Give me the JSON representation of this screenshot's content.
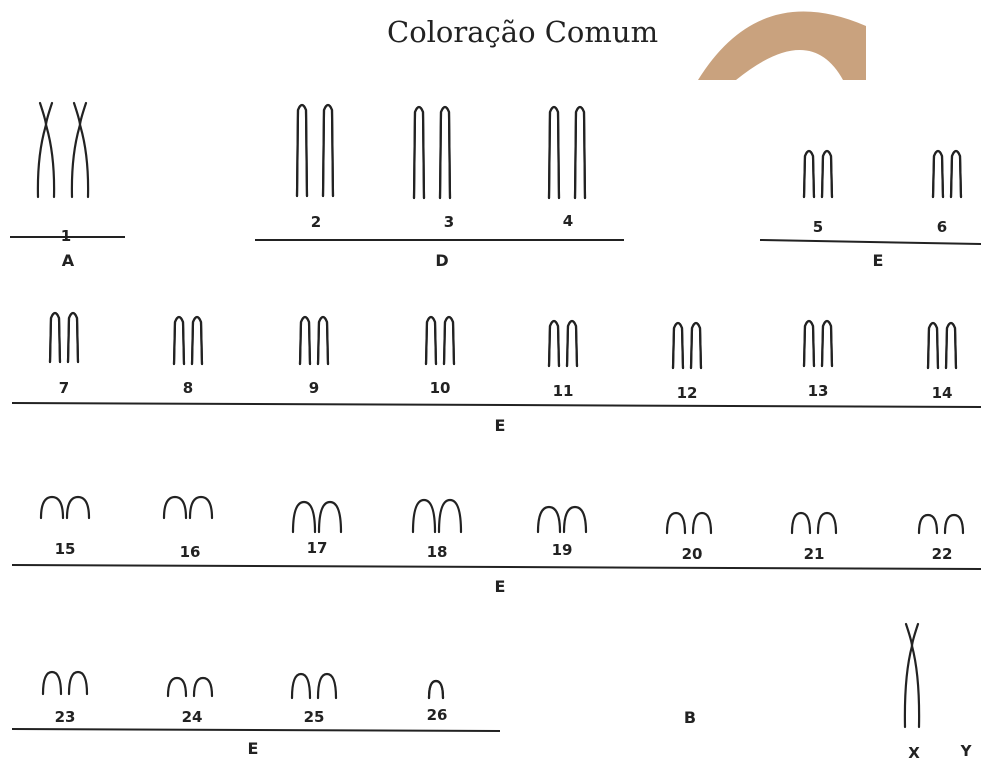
{
  "title": "Coloração Comum",
  "logo": {
    "name": "arc-logo",
    "color": "#c9a27e"
  },
  "chromosomes": [
    {
      "label": "1",
      "type": "X-shape-long"
    },
    {
      "label": "2",
      "type": "arch-long"
    },
    {
      "label": "3",
      "type": "arch-long"
    },
    {
      "label": "4",
      "type": "arch-long"
    },
    {
      "label": "5",
      "type": "arch-medium"
    },
    {
      "label": "6",
      "type": "arch-medium"
    },
    {
      "label": "7",
      "type": "arch-short"
    },
    {
      "label": "8",
      "type": "arch-short"
    },
    {
      "label": "9",
      "type": "arch-short"
    },
    {
      "label": "10",
      "type": "arch-short"
    },
    {
      "label": "11",
      "type": "arch-short"
    },
    {
      "label": "12",
      "type": "arch-short"
    },
    {
      "label": "13",
      "type": "arch-short"
    },
    {
      "label": "14",
      "type": "arch-short"
    },
    {
      "label": "15",
      "type": "hump"
    },
    {
      "label": "16",
      "type": "hump"
    },
    {
      "label": "17",
      "type": "hump"
    },
    {
      "label": "18",
      "type": "hump"
    },
    {
      "label": "19",
      "type": "hump"
    },
    {
      "label": "20",
      "type": "hump"
    },
    {
      "label": "21",
      "type": "hump"
    },
    {
      "label": "22",
      "type": "hump"
    },
    {
      "label": "23",
      "type": "hump"
    },
    {
      "label": "24",
      "type": "hump"
    },
    {
      "label": "25",
      "type": "hump"
    },
    {
      "label": "26",
      "type": "hump-single"
    },
    {
      "label": "X",
      "type": "X-shape-single"
    },
    {
      "label": "Y",
      "type": "none"
    }
  ],
  "groups": [
    "A",
    "D",
    "E",
    "E",
    "E",
    "E",
    "B"
  ]
}
